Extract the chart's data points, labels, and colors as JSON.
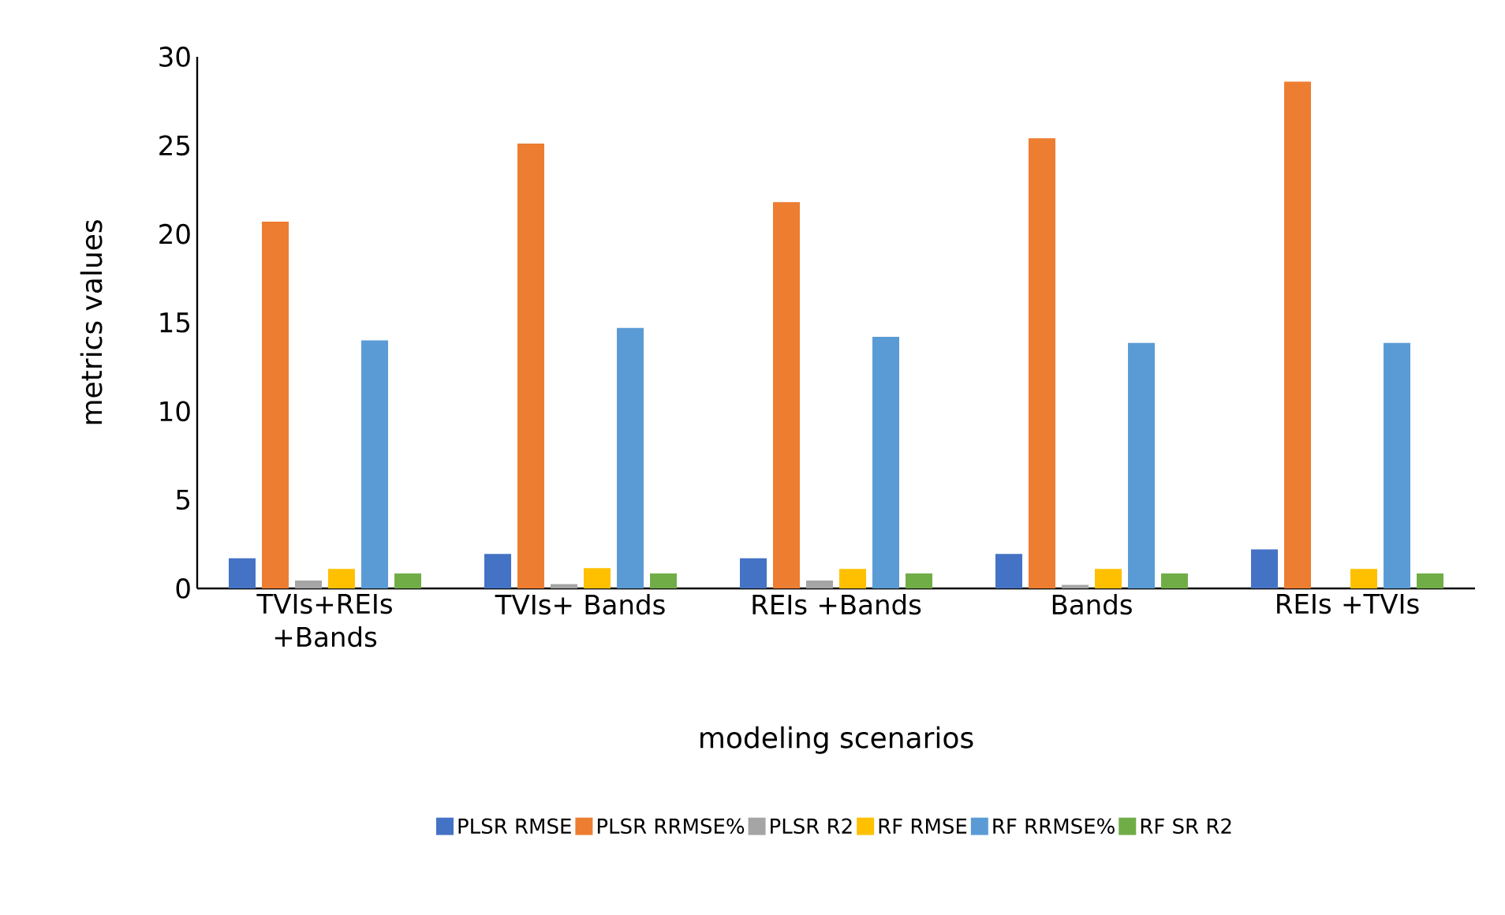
{
  "chart_data": {
    "type": "bar",
    "categories": [
      "TVIs+REIs +Bands",
      "TVIs+ Bands",
      "REIs +Bands",
      "Bands",
      "REIs +TVIs"
    ],
    "series": [
      {
        "name": "PLSR RMSE",
        "color": "#4472c4",
        "values": [
          1.7,
          1.95,
          1.7,
          1.95,
          2.2
        ]
      },
      {
        "name": "PLSR RRMSE%",
        "color": "#ed7d31",
        "values": [
          20.7,
          25.1,
          21.8,
          25.4,
          28.6
        ]
      },
      {
        "name": "PLSR R2",
        "color": "#a5a5a5",
        "values": [
          0.45,
          0.25,
          0.45,
          0.2,
          null
        ]
      },
      {
        "name": "RF RMSE",
        "color": "#ffc000",
        "values": [
          1.1,
          1.15,
          1.1,
          1.1,
          1.1
        ]
      },
      {
        "name": "RF RRMSE%",
        "color": "#5b9bd5",
        "values": [
          14.0,
          14.7,
          14.2,
          13.85,
          13.85
        ]
      },
      {
        "name": "RF SR R2",
        "color": "#70ad47",
        "values": [
          0.85,
          0.85,
          0.85,
          0.85,
          0.85
        ]
      }
    ],
    "xlabel": "modeling scenarios",
    "ylabel": "metrics values",
    "ylim": [
      0,
      30
    ],
    "yticks": [
      0,
      5,
      10,
      15,
      20,
      25,
      30
    ],
    "grid": false,
    "legend": "bottom"
  }
}
